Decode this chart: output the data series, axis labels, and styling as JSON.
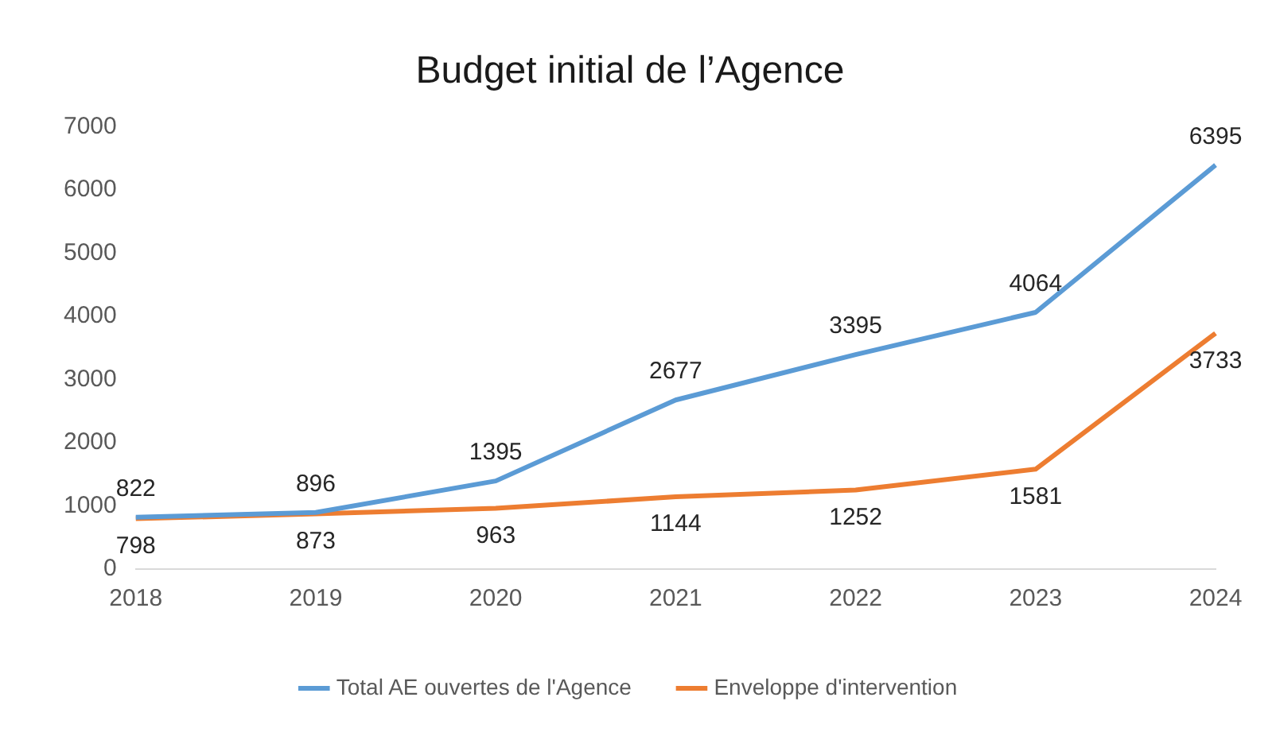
{
  "chart_data": {
    "type": "line",
    "title": "Budget initial de l’Agence",
    "categories": [
      "2018",
      "2019",
      "2020",
      "2021",
      "2022",
      "2023",
      "2024"
    ],
    "series": [
      {
        "name": "Total AE ouvertes de l'Agence",
        "color": "#5b9bd5",
        "values": [
          822,
          896,
          1395,
          2677,
          3395,
          4064,
          6395
        ]
      },
      {
        "name": "Enveloppe d'intervention",
        "color": "#ed7d31",
        "values": [
          798,
          873,
          963,
          1144,
          1252,
          1581,
          3733
        ]
      }
    ],
    "ylim": [
      0,
      7000
    ],
    "yticks": [
      0,
      1000,
      2000,
      3000,
      4000,
      5000,
      6000,
      7000
    ],
    "grid": false,
    "legend": "bottom",
    "marker": "none",
    "line_style": "solid",
    "data_labels": true
  }
}
